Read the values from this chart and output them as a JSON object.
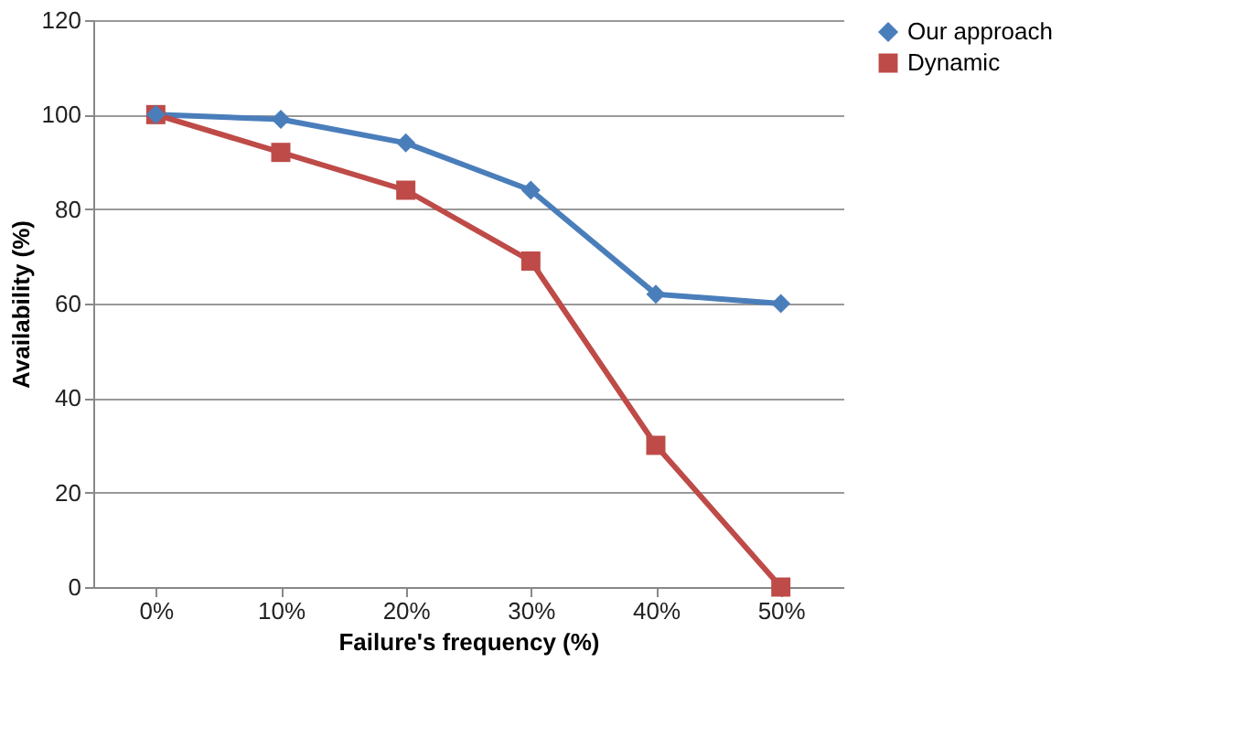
{
  "chart_data": {
    "type": "line",
    "xlabel": "Failure's frequency (%)",
    "ylabel": "Availability (%)",
    "categories": [
      "0%",
      "10%",
      "20%",
      "30%",
      "40%",
      "50%"
    ],
    "series": [
      {
        "name": "Our approach",
        "color": "#4a7ebb",
        "marker": "diamond",
        "values": [
          100,
          99,
          94,
          84,
          62,
          60
        ]
      },
      {
        "name": "Dynamic",
        "color": "#be4b48",
        "marker": "square",
        "values": [
          100,
          92,
          84,
          69,
          30,
          0
        ]
      }
    ],
    "ylim": [
      0,
      120
    ],
    "yticks": [
      0,
      20,
      40,
      60,
      80,
      100,
      120
    ],
    "grid": "y",
    "legend": "right"
  }
}
